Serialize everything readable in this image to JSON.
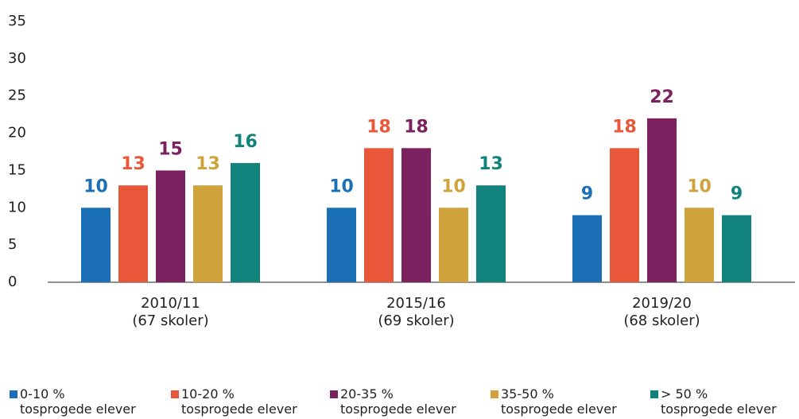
{
  "chart_data": {
    "type": "bar",
    "categories": [
      "2010/11\n(67 skoler)",
      "2015/16\n(69 skoler)",
      "2019/20\n(68 skoler)"
    ],
    "series": [
      {
        "name": "0-10 %\ntosprogede elever",
        "color": "#1a6fb5",
        "values": [
          10,
          10,
          9
        ]
      },
      {
        "name": "10-20 %\ntosprogede elever",
        "color": "#e8573a",
        "values": [
          13,
          18,
          18
        ]
      },
      {
        "name": "20-35 %\ntosprogede elever",
        "color": "#7b2160",
        "values": [
          15,
          18,
          22
        ]
      },
      {
        "name": "35-50 %\ntosprogede elever",
        "color": "#cfa23a",
        "values": [
          13,
          10,
          10
        ]
      },
      {
        "name": "> 50 %\ntosprogede elever",
        "color": "#12837c",
        "values": [
          16,
          13,
          9
        ]
      }
    ],
    "ylim": [
      0,
      35
    ],
    "yticks": [
      0,
      5,
      10,
      15,
      20,
      25,
      30,
      35
    ],
    "grid": false,
    "legend": "bottom"
  }
}
